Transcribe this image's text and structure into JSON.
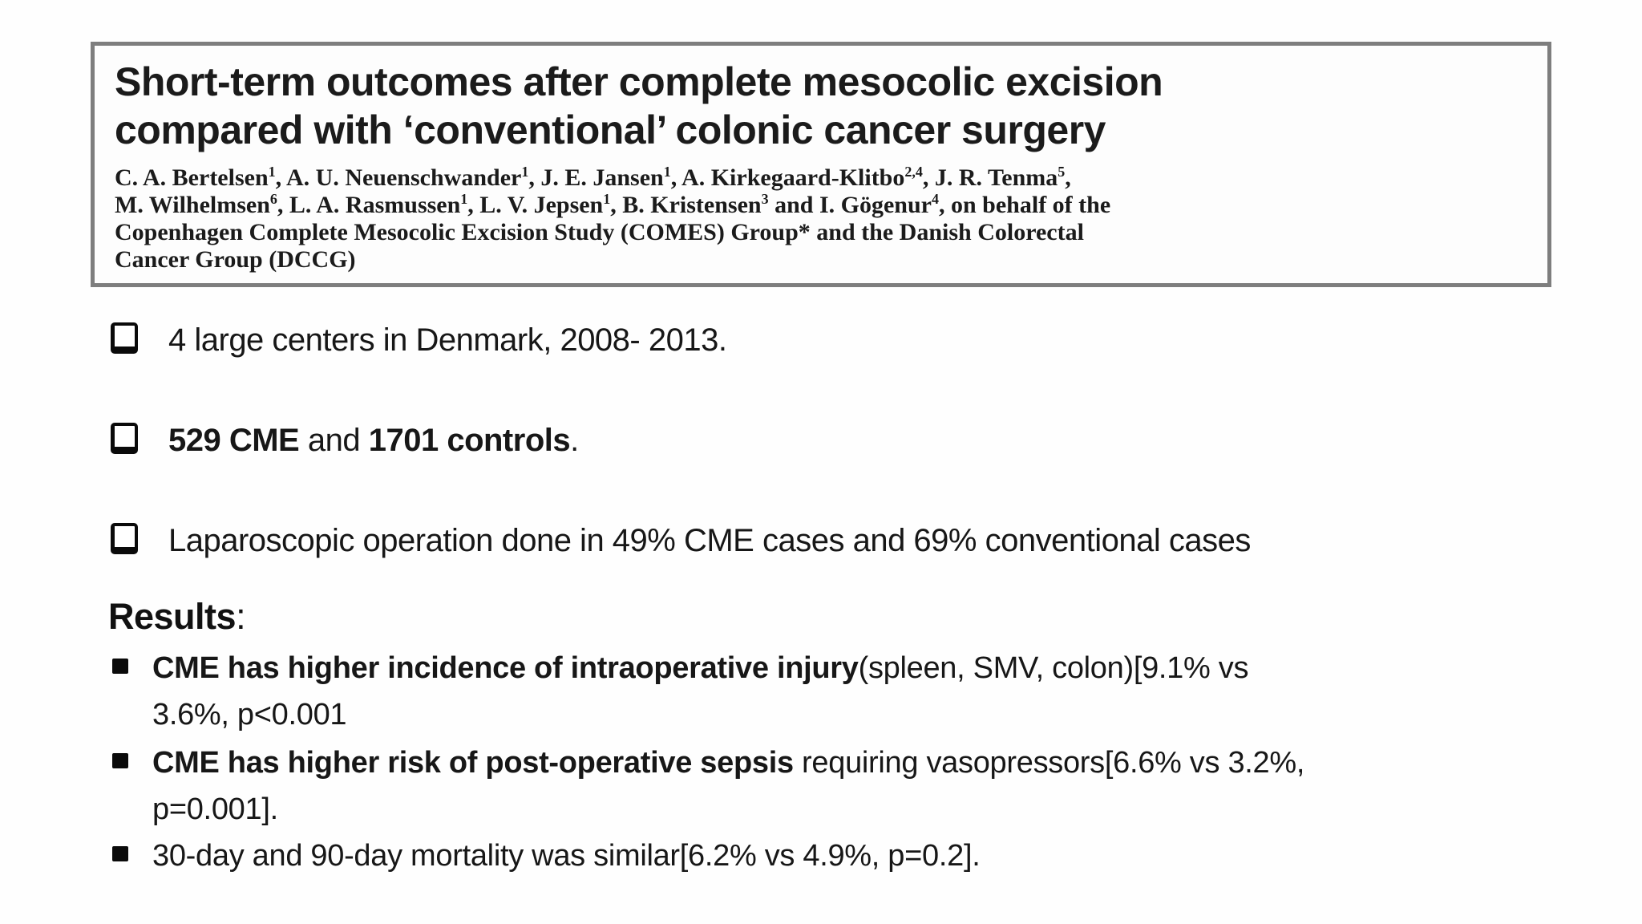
{
  "paper_box": {
    "title_line1": "Short-term outcomes after complete mesocolic excision",
    "title_line2": "compared with ‘conventional’ colonic cancer surgery",
    "author_lines": [
      [
        {
          "t": "C. A. Bertelsen"
        },
        {
          "t": "1",
          "sup": true
        },
        {
          "t": ", A. U. Neuenschwander"
        },
        {
          "t": "1",
          "sup": true
        },
        {
          "t": ", J. E. Jansen"
        },
        {
          "t": "1",
          "sup": true
        },
        {
          "t": ", A. Kirkegaard-Klitbo"
        },
        {
          "t": "2,4",
          "sup": true
        },
        {
          "t": ", J. R. Tenma"
        },
        {
          "t": "5",
          "sup": true
        },
        {
          "t": ","
        }
      ],
      [
        {
          "t": "M. Wilhelmsen"
        },
        {
          "t": "6",
          "sup": true
        },
        {
          "t": ", L. A. Rasmussen"
        },
        {
          "t": "1",
          "sup": true
        },
        {
          "t": ", L. V. Jepsen"
        },
        {
          "t": "1",
          "sup": true
        },
        {
          "t": ", B. Kristensen"
        },
        {
          "t": "3",
          "sup": true
        },
        {
          "t": " and I. Gögenur"
        },
        {
          "t": "4",
          "sup": true
        },
        {
          "t": ", on behalf of the"
        }
      ],
      [
        {
          "t": "Copenhagen Complete Mesocolic Excision Study (COMES) Group* and the Danish Colorectal"
        }
      ],
      [
        {
          "t": "Cancer Group (DCCG)"
        }
      ]
    ]
  },
  "bullets": [
    {
      "segments": [
        {
          "t": "4 large centers in Denmark, 2008- 2013."
        }
      ]
    },
    {
      "segments": [
        {
          "t": "529 CME",
          "b": true
        },
        {
          "t": " and "
        },
        {
          "t": "1701 controls",
          "b": true
        },
        {
          "t": "."
        }
      ]
    },
    {
      "segments": [
        {
          "t": "Laparoscopic operation done in 49% CME cases and 69% conventional cases"
        }
      ]
    }
  ],
  "results": {
    "heading": [
      {
        "t": "Results",
        "b": true
      },
      {
        "t": ":"
      }
    ],
    "bullets": [
      {
        "lines": [
          [
            {
              "t": "CME has higher incidence of intraoperative injury",
              "b": true
            },
            {
              "t": "(spleen, SMV, colon)[9.1% vs"
            }
          ],
          [
            {
              "t": "3.6%, p<0.001"
            }
          ]
        ]
      },
      {
        "lines": [
          [
            {
              "t": "CME has higher risk of post-operative sepsis",
              "b": true
            },
            {
              "t": " requiring vasopressors[6.6% vs 3.2%,"
            }
          ],
          [
            {
              "t": "p=0.001]."
            }
          ]
        ]
      },
      {
        "lines": [
          [
            {
              "t": "30-day and 90-day mortality was similar[6.2% vs 4.9%, p=0.2]."
            }
          ]
        ]
      }
    ]
  },
  "colors": {
    "paper_box_border": "#7e7e7e",
    "text": "#1b1b1b",
    "background": "#fefefe"
  }
}
